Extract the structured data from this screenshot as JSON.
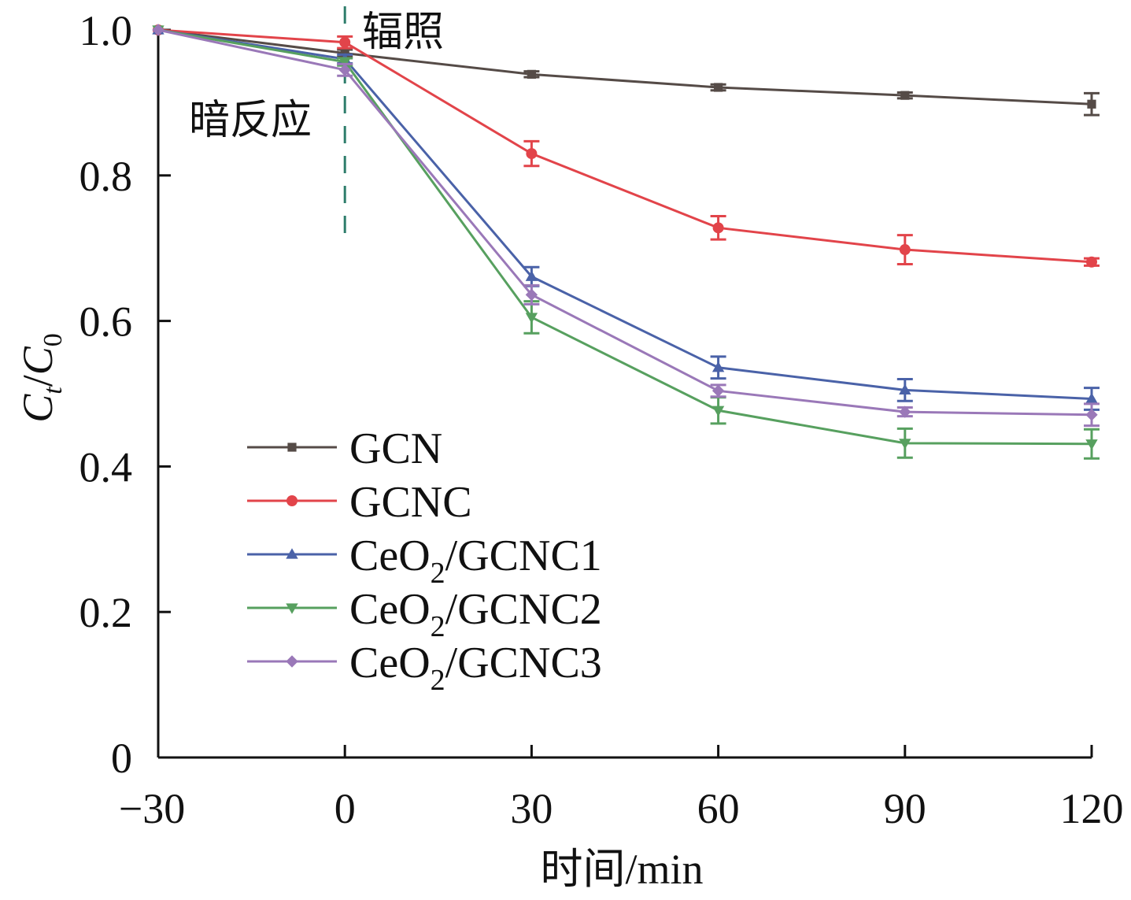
{
  "chart_data": {
    "type": "line",
    "title": "",
    "xlabel": "时间/min",
    "ylabel": {
      "main": "C",
      "sub1": "t",
      "slash": "/",
      "main2": "C",
      "sub2": "0"
    },
    "x": [
      -30,
      0,
      30,
      60,
      90,
      120
    ],
    "xlim": [
      -30,
      120
    ],
    "ylim": [
      0,
      1.0
    ],
    "xticks": [
      "−30",
      "0",
      "30",
      "60",
      "90",
      "120"
    ],
    "xtick_values": [
      -30,
      0,
      30,
      60,
      90,
      120
    ],
    "yticks": [
      "0",
      "0.2",
      "0.4",
      "0.6",
      "0.8",
      "1.0"
    ],
    "ytick_values": [
      0,
      0.2,
      0.4,
      0.6,
      0.8,
      1.0
    ],
    "grid": false,
    "legend_position": "center-left",
    "annotations": {
      "dark": "暗反应",
      "light": "辐照",
      "divider_x": 0,
      "divider_color": "#2e7d6b"
    },
    "series": [
      {
        "name": "GCN",
        "label_main": "GCN",
        "label_sub": "",
        "label_rest": "",
        "marker": "square",
        "color": "#554b47",
        "values": [
          1.0,
          0.968,
          0.939,
          0.921,
          0.91,
          0.898
        ],
        "errors": [
          0.0,
          0.005,
          0.004,
          0.004,
          0.004,
          0.015
        ]
      },
      {
        "name": "GCNC",
        "label_main": "GCNC",
        "label_sub": "",
        "label_rest": "",
        "marker": "circle",
        "color": "#e2444a",
        "values": [
          1.0,
          0.983,
          0.83,
          0.728,
          0.698,
          0.681
        ],
        "errors": [
          0.0,
          0.008,
          0.017,
          0.016,
          0.02,
          0.005
        ]
      },
      {
        "name": "CeO2/GCNC1",
        "label_main": "CeO",
        "label_sub": "2",
        "label_rest": "/GCNC1",
        "marker": "triangle-up",
        "color": "#4a62a8",
        "values": [
          1.0,
          0.96,
          0.661,
          0.536,
          0.505,
          0.493
        ],
        "errors": [
          0.0,
          0.006,
          0.013,
          0.015,
          0.015,
          0.015
        ]
      },
      {
        "name": "CeO2/GCNC2",
        "label_main": "CeO",
        "label_sub": "2",
        "label_rest": "/GCNC2",
        "marker": "triangle-down",
        "color": "#57a05f",
        "values": [
          1.0,
          0.956,
          0.605,
          0.477,
          0.432,
          0.431
        ],
        "errors": [
          0.0,
          0.005,
          0.022,
          0.018,
          0.02,
          0.02
        ]
      },
      {
        "name": "CeO2/GCNC3",
        "label_main": "CeO",
        "label_sub": "2",
        "label_rest": "/GCNC3",
        "marker": "diamond",
        "color": "#9a78b8",
        "values": [
          1.0,
          0.945,
          0.636,
          0.504,
          0.475,
          0.471
        ],
        "errors": [
          0.0,
          0.008,
          0.013,
          0.008,
          0.006,
          0.015
        ]
      }
    ]
  }
}
